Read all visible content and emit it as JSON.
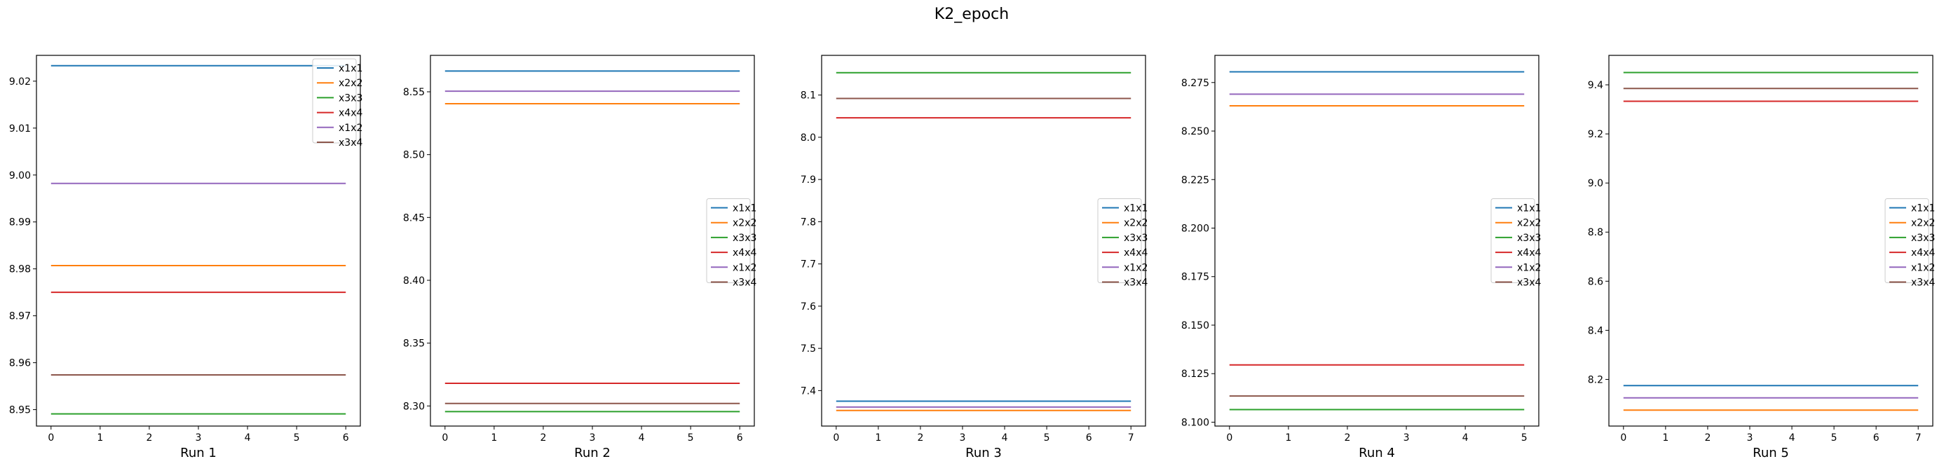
{
  "figure": {
    "title": "K2_epoch"
  },
  "legend_labels": [
    "x1x1",
    "x2x2",
    "x3x3",
    "x4x4",
    "x1x2",
    "x3x4"
  ],
  "colors": {
    "x1x1": "#1f77b4",
    "x2x2": "#ff7f0e",
    "x3x3": "#2ca02c",
    "x4x4": "#d62728",
    "x1x2": "#9467bd",
    "x3x4": "#8c564b"
  },
  "chart_data": [
    {
      "type": "line",
      "xlabel": "Run 1",
      "xlim": [
        0,
        6
      ],
      "xticks": [
        0,
        1,
        2,
        3,
        4,
        5,
        6
      ],
      "ylim": [
        8.9465,
        9.0255
      ],
      "yticks": [
        8.95,
        8.96,
        8.97,
        8.98,
        8.99,
        9.0,
        9.01,
        9.02
      ],
      "ytick_decimals": 2,
      "legend_position": "upper right",
      "series": [
        {
          "name": "x1x1",
          "value": 9.0233
        },
        {
          "name": "x2x2",
          "value": 8.9807
        },
        {
          "name": "x3x3",
          "value": 8.9491
        },
        {
          "name": "x4x4",
          "value": 8.975
        },
        {
          "name": "x1x2",
          "value": 8.9982
        },
        {
          "name": "x3x4",
          "value": 8.9574
        }
      ]
    },
    {
      "type": "line",
      "xlabel": "Run 2",
      "xlim": [
        0,
        6
      ],
      "xticks": [
        0,
        1,
        2,
        3,
        4,
        5,
        6
      ],
      "ylim": [
        8.284,
        8.579
      ],
      "yticks": [
        8.3,
        8.35,
        8.4,
        8.45,
        8.5,
        8.55
      ],
      "ytick_decimals": 2,
      "legend_position": "center right",
      "series": [
        {
          "name": "x1x1",
          "value": 8.5665
        },
        {
          "name": "x2x2",
          "value": 8.5405
        },
        {
          "name": "x3x3",
          "value": 8.2955
        },
        {
          "name": "x4x4",
          "value": 8.318
        },
        {
          "name": "x1x2",
          "value": 8.5505
        },
        {
          "name": "x3x4",
          "value": 8.302
        }
      ]
    },
    {
      "type": "line",
      "xlabel": "Run 3",
      "xlim": [
        0,
        7
      ],
      "xticks": [
        0,
        1,
        2,
        3,
        4,
        5,
        6,
        7
      ],
      "ylim": [
        7.316,
        8.194
      ],
      "yticks": [
        7.4,
        7.5,
        7.6,
        7.7,
        7.8,
        7.9,
        8.0,
        8.1
      ],
      "ytick_decimals": 1,
      "legend_position": "center right",
      "series": [
        {
          "name": "x1x1",
          "value": 7.375
        },
        {
          "name": "x2x2",
          "value": 7.353
        },
        {
          "name": "x3x3",
          "value": 8.153
        },
        {
          "name": "x4x4",
          "value": 8.046
        },
        {
          "name": "x1x2",
          "value": 7.361
        },
        {
          "name": "x3x4",
          "value": 8.092
        }
      ]
    },
    {
      "type": "line",
      "xlabel": "Run 4",
      "xlim": [
        0,
        5
      ],
      "xticks": [
        0,
        1,
        2,
        3,
        4,
        5
      ],
      "ylim": [
        8.098,
        8.289
      ],
      "yticks": [
        8.1,
        8.125,
        8.15,
        8.175,
        8.2,
        8.225,
        8.25,
        8.275
      ],
      "ytick_decimals": 3,
      "legend_position": "center right",
      "series": [
        {
          "name": "x1x1",
          "value": 8.2805
        },
        {
          "name": "x2x2",
          "value": 8.263
        },
        {
          "name": "x3x3",
          "value": 8.1065
        },
        {
          "name": "x4x4",
          "value": 8.1295
        },
        {
          "name": "x1x2",
          "value": 8.269
        },
        {
          "name": "x3x4",
          "value": 8.1135
        }
      ]
    },
    {
      "type": "line",
      "xlabel": "Run 5",
      "xlim": [
        0,
        7
      ],
      "xticks": [
        0,
        1,
        2,
        3,
        4,
        5,
        6,
        7
      ],
      "ylim": [
        8.01,
        9.52
      ],
      "yticks": [
        8.2,
        8.4,
        8.6,
        8.8,
        9.0,
        9.2,
        9.4
      ],
      "ytick_decimals": 1,
      "legend_position": "center right",
      "series": [
        {
          "name": "x1x1",
          "value": 8.175
        },
        {
          "name": "x2x2",
          "value": 8.075
        },
        {
          "name": "x3x3",
          "value": 9.45
        },
        {
          "name": "x4x4",
          "value": 9.333
        },
        {
          "name": "x1x2",
          "value": 8.125
        },
        {
          "name": "x3x4",
          "value": 9.385
        }
      ]
    }
  ]
}
